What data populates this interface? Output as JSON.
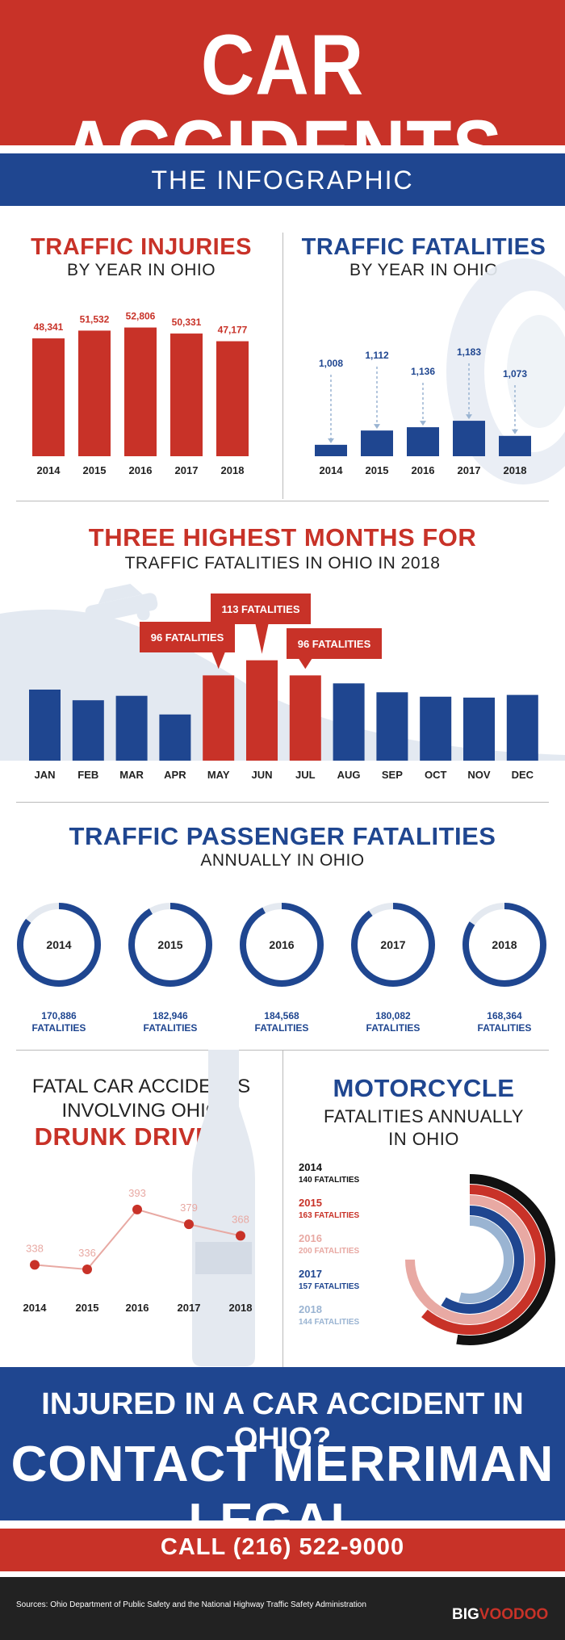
{
  "header": {
    "title": "CAR ACCIDENTS",
    "subtitle": "THE INFOGRAPHIC"
  },
  "colors": {
    "red": "#c83228",
    "blue": "#1f4690",
    "pink": "#e8a9a3",
    "lightblue": "#9ab4d2",
    "black": "#111111"
  },
  "sections": {
    "injuries": {
      "title": "TRAFFIC INJURIES",
      "subtitle": "BY YEAR IN OHIO"
    },
    "fatalities": {
      "title": "TRAFFIC FATALITIES",
      "subtitle": "BY YEAR IN OHIO",
      "icon": "tire-icon"
    },
    "months": {
      "title": "THREE HIGHEST MONTHS FOR",
      "subtitle": "TRAFFIC FATALITIES IN OHIO IN 2018",
      "icon": "car-icon"
    },
    "passenger": {
      "title": "TRAFFIC PASSENGER FATALITIES",
      "subtitle": "ANNUALLY IN OHIO"
    },
    "drunk": {
      "title1": "FATAL CAR ACCIDENTS",
      "title2": "INVOLVING OHIO",
      "title3": "DRUNK DRIVERS",
      "icon": "bottle-icon"
    },
    "motorcycle": {
      "title": "MOTORCYCLE",
      "subtitle1": "FATALITIES ANNUALLY",
      "subtitle2": "IN OHIO"
    }
  },
  "chart_data": [
    {
      "type": "bar",
      "categories": [
        "2014",
        "2015",
        "2016",
        "2017",
        "2018"
      ],
      "values": [
        48341,
        51532,
        52806,
        50331,
        47177
      ],
      "data_labels": [
        "48,341",
        "51,532",
        "52,806",
        "50,331",
        "47,177"
      ],
      "title": "TRAFFIC INJURIES",
      "subtitle": "BY YEAR IN OHIO",
      "color": "#c83228"
    },
    {
      "type": "bar",
      "categories": [
        "2014",
        "2015",
        "2016",
        "2017",
        "2018"
      ],
      "values": [
        1008,
        1112,
        1136,
        1183,
        1073
      ],
      "data_labels": [
        "1,008",
        "1,112",
        "1,136",
        "1,183",
        "1,073"
      ],
      "title": "TRAFFIC FATALITIES",
      "subtitle": "BY YEAR IN OHIO",
      "color": "#1f4690"
    },
    {
      "type": "bar",
      "categories": [
        "JAN",
        "FEB",
        "MAR",
        "APR",
        "MAY",
        "JUN",
        "JUL",
        "AUG",
        "SEP",
        "OCT",
        "NOV",
        "DEC"
      ],
      "values": [
        80,
        68,
        73,
        52,
        96,
        113,
        96,
        87,
        77,
        72,
        71,
        74
      ],
      "highlight": [
        4,
        5,
        6
      ],
      "callouts": [
        "96 FATALITIES",
        "113 FATALITIES",
        "96 FATALITIES"
      ],
      "title": "THREE HIGHEST MONTHS FOR",
      "subtitle": "TRAFFIC FATALITIES IN OHIO IN 2018"
    },
    {
      "type": "pie",
      "variant": "ring",
      "categories": [
        "2014",
        "2015",
        "2016",
        "2017",
        "2018"
      ],
      "values": [
        170886,
        182946,
        184568,
        180082,
        168364
      ],
      "data_labels": [
        "170,886",
        "182,946",
        "184,568",
        "180,082",
        "168,364"
      ],
      "unit_label": "FATALITIES",
      "title": "TRAFFIC PASSENGER FATALITIES",
      "subtitle": "ANNUALLY IN OHIO"
    },
    {
      "type": "line",
      "x": [
        "2014",
        "2015",
        "2016",
        "2017",
        "2018"
      ],
      "values": [
        338,
        336,
        393,
        379,
        368
      ],
      "ylim": [
        320,
        400
      ],
      "title": "FATAL CAR ACCIDENTS INVOLVING OHIO DRUNK DRIVERS"
    },
    {
      "type": "pie",
      "variant": "radial-bars",
      "categories": [
        "2014",
        "2015",
        "2016",
        "2017",
        "2018"
      ],
      "values": [
        140,
        163,
        200,
        157,
        144
      ],
      "data_labels": [
        "140 FATALITIES",
        "163 FATALITIES",
        "200 FATALITIES",
        "157 FATALITIES",
        "144 FATALITIES"
      ],
      "colors": [
        "#111111",
        "#c83228",
        "#e8a9a3",
        "#1f4690",
        "#9ab4d2"
      ],
      "title": "MOTORCYCLE FATALITIES ANNUALLY IN OHIO"
    }
  ],
  "footer": {
    "cta_question": "INJURED IN A CAR ACCIDENT IN OHIO?",
    "cta_action": "CONTACT MERRIMAN LEGAL.",
    "call": "CALL (216) 522-9000",
    "sources": "Sources: Ohio Department of Public Safety and the National Highway Traffic Safety Administration",
    "brand_a": "BIG",
    "brand_b": "VOODOO"
  }
}
